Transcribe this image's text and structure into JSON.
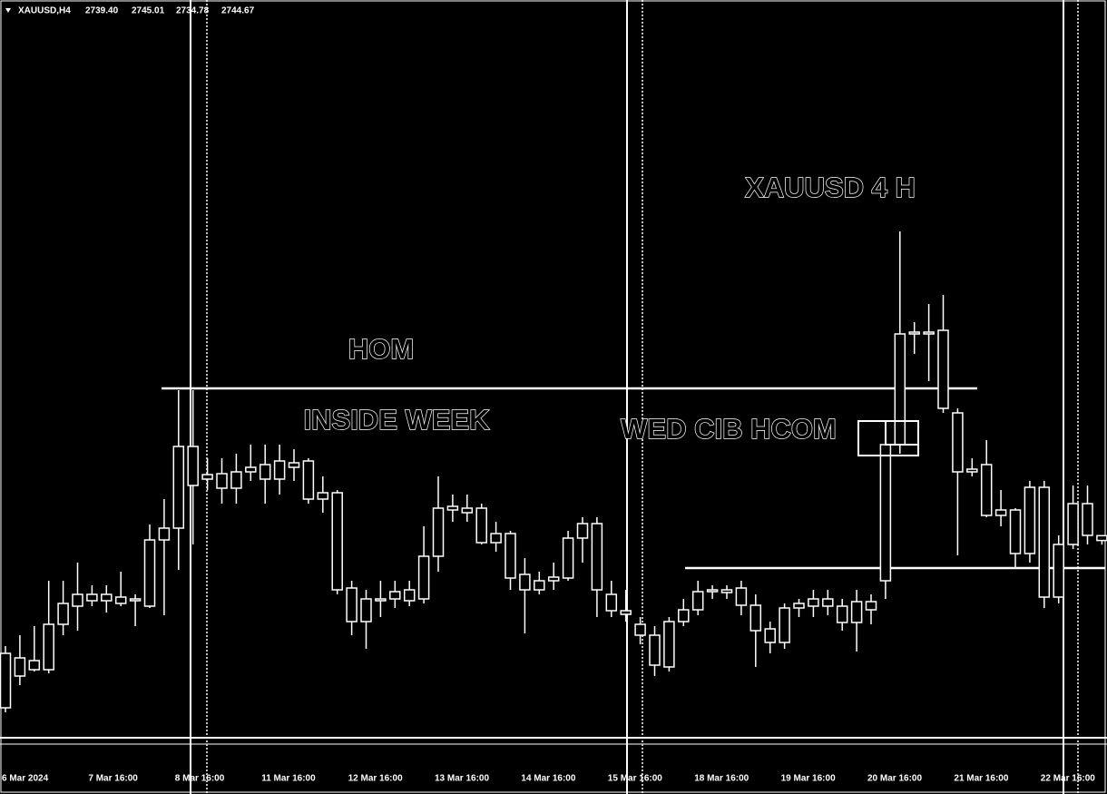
{
  "chart_data": {
    "type": "candlestick",
    "symbol": "XAUUSD,H4",
    "last_ohlc_labels": [
      "2739.40",
      "2745.01",
      "2734.78",
      "2744.67"
    ],
    "title": "XAUUSD 4 H",
    "annotations": [
      "HOM",
      "INSIDE WEEK",
      "WED CIB HCOM"
    ],
    "categories": [
      "6 Mar 2024",
      null,
      null,
      null,
      null,
      null,
      "7 Mar 16:00",
      null,
      null,
      null,
      null,
      null,
      "8 Mar 16:00",
      null,
      null,
      null,
      null,
      null,
      "11 Mar 16:00",
      null,
      null,
      null,
      null,
      null,
      "12 Mar 16:00",
      null,
      null,
      null,
      null,
      null,
      "13 Mar 16:00",
      null,
      null,
      null,
      null,
      null,
      "14 Mar 16:00",
      null,
      null,
      null,
      null,
      null,
      "15 Mar 16:00",
      null,
      null,
      null,
      null,
      null,
      "18 Mar 16:00",
      null,
      null,
      null,
      null,
      null,
      "19 Mar 16:00",
      null,
      null,
      null,
      null,
      null,
      "20 Mar 16:00",
      null,
      null,
      null,
      null,
      null,
      "21 Mar 16:00",
      null,
      null,
      null,
      null,
      null,
      "22 Mar 16:00",
      null,
      null,
      null,
      null
    ],
    "open": [
      2555,
      2590,
      2607,
      2597,
      2647,
      2667,
      2680,
      2673,
      2677,
      2673,
      2667,
      2740,
      2753,
      2843,
      2807,
      2813,
      2797,
      2815,
      2807,
      2827,
      2820,
      2827,
      2792,
      2792,
      2687,
      2650,
      2673,
      2675,
      2685,
      2675,
      2722,
      2773,
      2775,
      2775,
      2737,
      2747,
      2702,
      2685,
      2695,
      2698,
      2742,
      2758,
      2680,
      2662,
      2647,
      2635,
      2600,
      2650,
      2663,
      2685,
      2682,
      2687,
      2668,
      2642,
      2627,
      2665,
      2667,
      2675,
      2667,
      2649,
      2663,
      2695,
      2845,
      2967,
      2969,
      2971,
      2880,
      2815,
      2823,
      2773,
      2773,
      2725,
      2798,
      2677,
      2735,
      2780,
      2739.4
    ],
    "high": [
      2623,
      2635,
      2645,
      2695,
      2695,
      2715,
      2690,
      2690,
      2705,
      2680,
      2757,
      2785,
      2905,
      2905,
      2830,
      2830,
      2835,
      2845,
      2845,
      2845,
      2840,
      2830,
      2810,
      2795,
      2695,
      2685,
      2695,
      2695,
      2695,
      2755,
      2810,
      2790,
      2790,
      2780,
      2760,
      2750,
      2720,
      2705,
      2715,
      2750,
      2765,
      2765,
      2695,
      2685,
      2655,
      2645,
      2655,
      2675,
      2695,
      2690,
      2690,
      2695,
      2680,
      2650,
      2670,
      2675,
      2685,
      2685,
      2675,
      2685,
      2680,
      2855,
      3080,
      2980,
      3000,
      3010,
      2885,
      2830,
      2850,
      2795,
      2775,
      2805,
      2805,
      2745,
      2800,
      2800,
      2745.01
    ],
    "low": [
      2550,
      2580,
      2595,
      2593,
      2635,
      2640,
      2667,
      2660,
      2667,
      2645,
      2665,
      2657,
      2707,
      2735,
      2795,
      2780,
      2780,
      2805,
      2780,
      2790,
      2805,
      2780,
      2770,
      2680,
      2635,
      2620,
      2655,
      2665,
      2667,
      2670,
      2705,
      2760,
      2760,
      2735,
      2727,
      2685,
      2637,
      2680,
      2685,
      2695,
      2715,
      2655,
      2655,
      2650,
      2625,
      2590,
      2595,
      2645,
      2657,
      2675,
      2675,
      2657,
      2600,
      2615,
      2620,
      2655,
      2655,
      2657,
      2640,
      2617,
      2647,
      2675,
      2835,
      2945,
      2915,
      2880,
      2723,
      2810,
      2765,
      2755,
      2710,
      2715,
      2665,
      2670,
      2730,
      2735,
      2734.78
    ],
    "close": [
      2615,
      2610,
      2597,
      2647,
      2670,
      2680,
      2673,
      2680,
      2670,
      2675,
      2740,
      2753,
      2843,
      2800,
      2812,
      2797,
      2815,
      2820,
      2823,
      2807,
      2825,
      2785,
      2785,
      2685,
      2650,
      2675,
      2675,
      2683,
      2673,
      2722,
      2775,
      2777,
      2770,
      2737,
      2747,
      2698,
      2685,
      2695,
      2699,
      2742,
      2758,
      2685,
      2662,
      2658,
      2635,
      2602,
      2650,
      2663,
      2683,
      2683,
      2685,
      2668,
      2640,
      2627,
      2665,
      2670,
      2675,
      2667,
      2649,
      2672,
      2672,
      2845,
      2967,
      2969,
      2967,
      2885,
      2815,
      2818,
      2767,
      2767,
      2725,
      2798,
      2677,
      2735,
      2780,
      2745,
      2744.67
    ],
    "levels": [
      2907,
      2709
    ],
    "ylim": [
      2520,
      3335
    ],
    "color": "#ffffff"
  }
}
